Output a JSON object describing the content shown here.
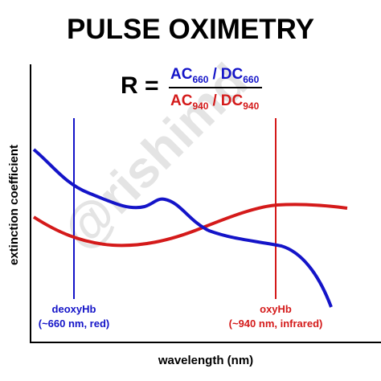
{
  "title": "PULSE OXIMETRY",
  "formula": {
    "lhs": "R =",
    "numerator": {
      "a": "AC",
      "a_sub": "660",
      "sep": "/",
      "b": "DC",
      "b_sub": "660"
    },
    "denominator": {
      "a": "AC",
      "a_sub": "940",
      "sep": "/",
      "b": "DC",
      "b_sub": "940"
    }
  },
  "axes": {
    "y_label": "extinction coefficient",
    "x_label": "wavelength (nm)"
  },
  "markers": [
    {
      "name": "deoxyHb",
      "detail": "(~660 nm, red)"
    },
    {
      "name": "oxyHb",
      "detail": "(~940 nm, infrared)"
    }
  ],
  "watermark": "@rishimd"
}
